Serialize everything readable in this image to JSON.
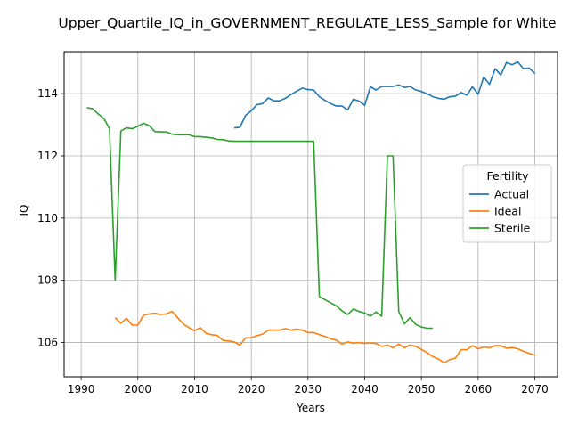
{
  "chart_data": {
    "type": "line",
    "title": "Upper_Quartile_IQ_in_GOVERNMENT_REGULATE_LESS_Sample for White",
    "xlabel": "Years",
    "ylabel": "IQ",
    "xlim": [
      1987,
      2074
    ],
    "ylim": [
      104.9,
      115.35
    ],
    "xticks": [
      1990,
      2000,
      2010,
      2020,
      2030,
      2040,
      2050,
      2060,
      2070
    ],
    "yticks": [
      106,
      108,
      110,
      112,
      114
    ],
    "grid": true,
    "legend": {
      "title": "Fertility",
      "placement": "center-right"
    },
    "series": [
      {
        "name": "Actual",
        "color": "#1f77b4",
        "x": [
          2017,
          2018,
          2019,
          2020,
          2021,
          2022,
          2023,
          2024,
          2025,
          2026,
          2027,
          2028,
          2029,
          2030,
          2031,
          2032,
          2033,
          2034,
          2035,
          2036,
          2037,
          2038,
          2039,
          2040,
          2041,
          2042,
          2043,
          2044,
          2045,
          2046,
          2047,
          2048,
          2049,
          2050,
          2051,
          2052,
          2053,
          2054,
          2055,
          2056,
          2057,
          2058,
          2059,
          2060,
          2061,
          2062,
          2063,
          2064,
          2065,
          2066,
          2067,
          2068,
          2069,
          2070
        ],
        "y": [
          112.9,
          112.92,
          113.3,
          113.45,
          113.65,
          113.68,
          113.86,
          113.77,
          113.77,
          113.85,
          113.97,
          114.08,
          114.18,
          114.13,
          114.12,
          113.9,
          113.78,
          113.68,
          113.6,
          113.6,
          113.48,
          113.82,
          113.76,
          113.63,
          114.22,
          114.12,
          114.23,
          114.23,
          114.23,
          114.28,
          114.2,
          114.23,
          114.12,
          114.07,
          114.0,
          113.9,
          113.85,
          113.82,
          113.9,
          113.92,
          114.04,
          113.95,
          114.22,
          113.98,
          114.54,
          114.3,
          114.8,
          114.6,
          115.0,
          114.93,
          115.02,
          114.8,
          114.82,
          114.65
        ]
      },
      {
        "name": "Ideal",
        "color": "#ff7f0e",
        "x": [
          1996,
          1997,
          1998,
          1999,
          2000,
          2001,
          2002,
          2003,
          2004,
          2005,
          2006,
          2007,
          2008,
          2009,
          2010,
          2011,
          2012,
          2013,
          2014,
          2015,
          2016,
          2017,
          2018,
          2019,
          2020,
          2021,
          2022,
          2023,
          2024,
          2025,
          2026,
          2027,
          2028,
          2029,
          2030,
          2031,
          2032,
          2033,
          2034,
          2035,
          2036,
          2037,
          2038,
          2039,
          2040,
          2041,
          2042,
          2043,
          2044,
          2045,
          2046,
          2047,
          2048,
          2049,
          2050,
          2051,
          2052,
          2053,
          2054,
          2055,
          2056,
          2057,
          2058,
          2059,
          2060,
          2061,
          2062,
          2063,
          2064,
          2065,
          2066,
          2067,
          2068,
          2069,
          2070
        ],
        "y": [
          106.8,
          106.62,
          106.78,
          106.56,
          106.56,
          106.88,
          106.92,
          106.94,
          106.9,
          106.92,
          107.0,
          106.8,
          106.6,
          106.48,
          106.38,
          106.48,
          106.3,
          106.25,
          106.23,
          106.07,
          106.05,
          106.02,
          105.92,
          106.15,
          106.15,
          106.22,
          106.27,
          106.4,
          106.4,
          106.4,
          106.45,
          106.4,
          106.43,
          106.4,
          106.32,
          106.32,
          106.25,
          106.2,
          106.12,
          106.08,
          105.95,
          106.02,
          105.98,
          106.0,
          105.97,
          105.99,
          105.97,
          105.88,
          105.92,
          105.83,
          105.95,
          105.83,
          105.92,
          105.88,
          105.78,
          105.68,
          105.55,
          105.47,
          105.35,
          105.45,
          105.5,
          105.77,
          105.77,
          105.9,
          105.8,
          105.86,
          105.83,
          105.9,
          105.9,
          105.82,
          105.84,
          105.8,
          105.72,
          105.65,
          105.6
        ]
      },
      {
        "name": "Sterile",
        "color": "#2ca02c",
        "x": [
          1991,
          1992,
          1993,
          1994,
          1995,
          1996,
          1997,
          1998,
          1999,
          2000,
          2001,
          2002,
          2003,
          2004,
          2005,
          2006,
          2007,
          2008,
          2009,
          2010,
          2011,
          2012,
          2013,
          2014,
          2015,
          2016,
          2017,
          2018,
          2019,
          2020,
          2021,
          2022,
          2023,
          2024,
          2025,
          2026,
          2027,
          2028,
          2029,
          2030,
          2031,
          2032,
          2033,
          2034,
          2035,
          2036,
          2037,
          2038,
          2039,
          2040,
          2041,
          2042,
          2043,
          2044,
          2045,
          2046,
          2047,
          2048,
          2049,
          2050,
          2051,
          2052
        ],
        "y": [
          113.55,
          113.52,
          113.35,
          113.2,
          112.88,
          108.0,
          112.8,
          112.9,
          112.87,
          112.95,
          113.05,
          112.97,
          112.78,
          112.77,
          112.77,
          112.7,
          112.68,
          112.68,
          112.68,
          112.62,
          112.62,
          112.6,
          112.58,
          112.53,
          112.52,
          112.48,
          112.47,
          112.47,
          112.47,
          112.47,
          112.47,
          112.47,
          112.47,
          112.47,
          112.47,
          112.47,
          112.47,
          112.47,
          112.47,
          112.47,
          112.47,
          107.47,
          107.38,
          107.28,
          107.18,
          107.02,
          106.9,
          107.08,
          107.0,
          106.95,
          106.85,
          106.98,
          106.85,
          112.0,
          112.0,
          107.0,
          106.6,
          106.8,
          106.58,
          106.5,
          106.46,
          106.46
        ]
      }
    ]
  }
}
